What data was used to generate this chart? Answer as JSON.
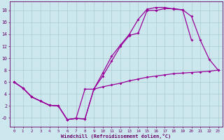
{
  "xlabel": "Windchill (Refroidissement éolien,°C)",
  "background_color": "#cce8ee",
  "grid_color": "#aacccc",
  "line_color": "#990099",
  "xlim": [
    -0.5,
    23.5
  ],
  "ylim": [
    -1.5,
    19.5
  ],
  "xticks": [
    0,
    1,
    2,
    3,
    4,
    5,
    6,
    7,
    8,
    9,
    10,
    11,
    12,
    13,
    14,
    15,
    16,
    17,
    18,
    19,
    20,
    21,
    22,
    23
  ],
  "yticks": [
    0,
    2,
    4,
    6,
    8,
    10,
    12,
    14,
    16,
    18
  ],
  "ytick_labels": [
    "-0",
    "2",
    "4",
    "6",
    "8",
    "10",
    "12",
    "14",
    "16",
    "18"
  ],
  "line1_x": [
    0,
    1,
    2,
    3,
    4,
    5,
    6,
    7,
    8,
    9,
    10,
    11,
    12,
    13,
    14,
    15,
    16,
    17,
    18,
    19,
    20
  ],
  "line1_y": [
    6.0,
    5.0,
    3.5,
    2.8,
    2.1,
    2.0,
    -0.3,
    -0.1,
    -0.2,
    4.8,
    7.0,
    9.5,
    12.0,
    13.8,
    14.2,
    18.0,
    18.0,
    18.3,
    18.3,
    18.1,
    13.0
  ],
  "line2_x": [
    0,
    1,
    2,
    3,
    4,
    5,
    6,
    7,
    8,
    9,
    10,
    11,
    12,
    13,
    14,
    15,
    16,
    17,
    18,
    19,
    20,
    21,
    22,
    23
  ],
  "line2_y": [
    6.0,
    5.0,
    3.5,
    2.8,
    2.1,
    2.0,
    -0.3,
    -0.1,
    -0.2,
    4.8,
    7.5,
    10.3,
    12.2,
    14.0,
    16.5,
    18.2,
    18.5,
    18.5,
    18.2,
    18.1,
    17.0,
    13.0,
    9.8,
    8.0
  ],
  "line3_x": [
    0,
    1,
    2,
    3,
    4,
    5,
    6,
    7,
    8,
    9,
    10,
    11,
    12,
    13,
    14,
    15,
    16,
    17,
    18,
    19,
    20,
    21,
    22,
    23
  ],
  "line3_y": [
    6.0,
    5.0,
    3.5,
    2.8,
    2.1,
    2.0,
    -0.3,
    -0.1,
    4.8,
    4.8,
    5.2,
    5.5,
    5.8,
    6.2,
    6.5,
    6.8,
    7.0,
    7.2,
    7.4,
    7.5,
    7.6,
    7.7,
    7.8,
    8.0
  ]
}
